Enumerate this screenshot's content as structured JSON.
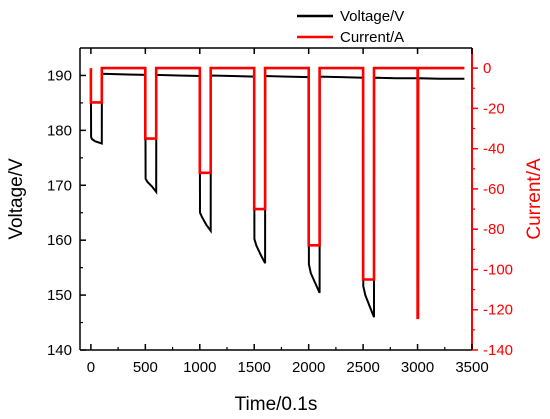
{
  "chart_data": {
    "type": "line",
    "xlabel": "Time/0.1s",
    "ylabel_left": "Voltage/V",
    "ylabel_right": "Current/A",
    "xlim": [
      -100,
      3500
    ],
    "ylim_left": [
      140,
      195
    ],
    "ylim_right": [
      -140,
      10
    ],
    "x_ticks": [
      0,
      500,
      1000,
      1500,
      2000,
      2500,
      3000,
      3500
    ],
    "y_left_ticks": [
      140,
      150,
      160,
      170,
      180,
      190
    ],
    "y_right_ticks": [
      0,
      -20,
      -40,
      -60,
      -80,
      -100,
      -120,
      -140
    ],
    "grid": false,
    "legend_position": "top-right",
    "series": [
      {
        "name": "Voltage/V",
        "axis": "left",
        "color": "#000000",
        "points": [
          [
            0,
            191.0
          ],
          [
            2,
            178.8
          ],
          [
            10,
            178.4
          ],
          [
            40,
            178.0
          ],
          [
            100,
            177.6
          ],
          [
            101,
            190.3
          ],
          [
            300,
            190.2
          ],
          [
            500,
            190.1
          ],
          [
            502,
            171.2
          ],
          [
            520,
            170.6
          ],
          [
            560,
            169.8
          ],
          [
            600,
            168.8
          ],
          [
            601,
            190.1
          ],
          [
            800,
            190.0
          ],
          [
            1000,
            189.9
          ],
          [
            1002,
            165.0
          ],
          [
            1020,
            164.2
          ],
          [
            1060,
            162.8
          ],
          [
            1100,
            161.7
          ],
          [
            1101,
            190.0
          ],
          [
            1300,
            189.9
          ],
          [
            1500,
            189.8
          ],
          [
            1502,
            160.2
          ],
          [
            1520,
            159.0
          ],
          [
            1560,
            157.3
          ],
          [
            1600,
            155.8
          ],
          [
            1601,
            189.9
          ],
          [
            1800,
            189.8
          ],
          [
            2000,
            189.7
          ],
          [
            2002,
            155.6
          ],
          [
            2020,
            154.0
          ],
          [
            2060,
            152.2
          ],
          [
            2100,
            150.4
          ],
          [
            2101,
            189.8
          ],
          [
            2300,
            189.7
          ],
          [
            2500,
            189.6
          ],
          [
            2502,
            151.6
          ],
          [
            2520,
            150.0
          ],
          [
            2560,
            148.0
          ],
          [
            2600,
            146.0
          ],
          [
            2601,
            189.6
          ],
          [
            2800,
            189.5
          ],
          [
            3000,
            189.5
          ],
          [
            3001,
            146.0
          ],
          [
            3006,
            146.0
          ],
          [
            3007,
            189.5
          ],
          [
            3200,
            189.4
          ],
          [
            3430,
            189.4
          ]
        ]
      },
      {
        "name": "Current/A",
        "axis": "right",
        "color": "#ff0000",
        "points": [
          [
            0,
            0
          ],
          [
            0,
            -17
          ],
          [
            100,
            -17
          ],
          [
            100,
            0
          ],
          [
            500,
            0
          ],
          [
            500,
            -35
          ],
          [
            600,
            -35
          ],
          [
            600,
            0
          ],
          [
            1000,
            0
          ],
          [
            1000,
            -52
          ],
          [
            1100,
            -52
          ],
          [
            1100,
            0
          ],
          [
            1500,
            0
          ],
          [
            1500,
            -70
          ],
          [
            1600,
            -70
          ],
          [
            1600,
            0
          ],
          [
            2000,
            0
          ],
          [
            2000,
            -88
          ],
          [
            2100,
            -88
          ],
          [
            2100,
            0
          ],
          [
            2500,
            0
          ],
          [
            2500,
            -105
          ],
          [
            2600,
            -105
          ],
          [
            2600,
            0
          ],
          [
            3000,
            0
          ],
          [
            3000,
            -124
          ],
          [
            3002,
            -124
          ],
          [
            3002,
            0
          ],
          [
            3430,
            0
          ]
        ]
      }
    ]
  }
}
